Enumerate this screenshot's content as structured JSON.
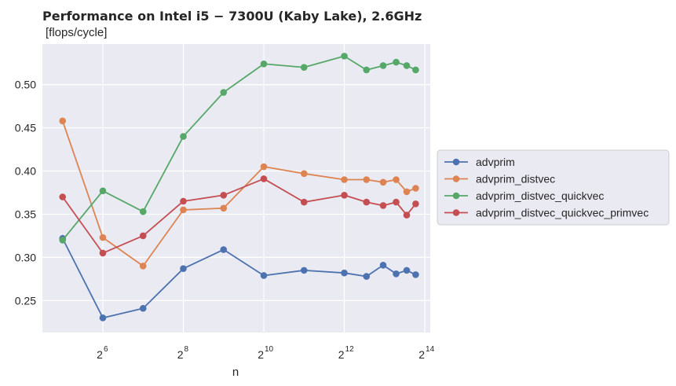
{
  "chart_data": {
    "type": "line",
    "title": "Performance on Intel i5 − 7300U (Kaby Lake),  2.6GHz",
    "ylabel": "[flops/cycle]",
    "xlabel": "n",
    "x_scale": "log2",
    "xlim": [
      22.6,
      18000
    ],
    "ylim": [
      0.213,
      0.547
    ],
    "yticks": [
      0.25,
      0.3,
      0.35,
      0.4,
      0.45,
      0.5
    ],
    "ytick_labels": [
      "0.25",
      "0.30",
      "0.35",
      "0.40",
      "0.45",
      "0.50"
    ],
    "xticks": [
      64,
      256,
      1024,
      4096,
      16384
    ],
    "xtick_labels": [
      {
        "base": "2",
        "exp": "6"
      },
      {
        "base": "2",
        "exp": "8"
      },
      {
        "base": "2",
        "exp": "10"
      },
      {
        "base": "2",
        "exp": "12"
      },
      {
        "base": "2",
        "exp": "14"
      }
    ],
    "x": [
      32,
      64,
      128,
      256,
      512,
      1024,
      2048,
      4096,
      6000,
      8000,
      10000,
      12000,
      14000
    ],
    "grid": true,
    "legend_position": "outside-right",
    "series": [
      {
        "name": "advprim",
        "color": "#4c72b0",
        "values": [
          0.322,
          0.23,
          0.241,
          0.287,
          0.309,
          0.279,
          0.285,
          0.282,
          0.278,
          0.291,
          0.281,
          0.285,
          0.28
        ]
      },
      {
        "name": "advprim_distvec",
        "color": "#dd8452",
        "values": [
          0.458,
          0.323,
          0.29,
          0.355,
          0.357,
          0.405,
          0.397,
          0.39,
          0.39,
          0.387,
          0.39,
          0.376,
          0.38
        ]
      },
      {
        "name": "advprim_distvec_quickvec",
        "color": "#55a868",
        "values": [
          0.32,
          0.377,
          0.353,
          0.44,
          0.491,
          0.524,
          0.52,
          0.533,
          0.517,
          0.522,
          0.526,
          0.522,
          0.517
        ]
      },
      {
        "name": "advprim_distvec_quickvec_primvec",
        "color": "#c44e52",
        "values": [
          0.37,
          0.305,
          0.325,
          0.365,
          0.372,
          0.391,
          0.364,
          0.372,
          0.364,
          0.36,
          0.364,
          0.349,
          0.362
        ]
      }
    ]
  }
}
